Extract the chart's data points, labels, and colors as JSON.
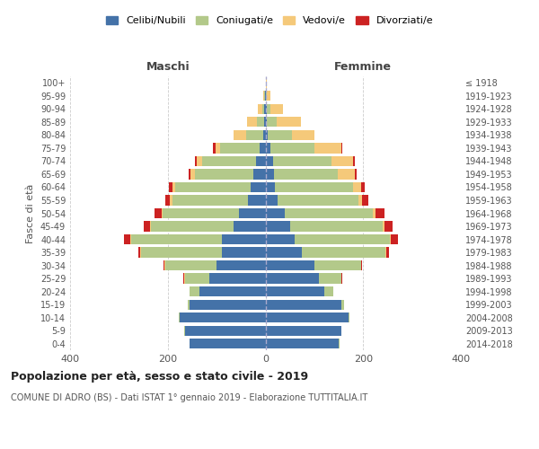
{
  "age_groups": [
    "0-4",
    "5-9",
    "10-14",
    "15-19",
    "20-24",
    "25-29",
    "30-34",
    "35-39",
    "40-44",
    "45-49",
    "50-54",
    "55-59",
    "60-64",
    "65-69",
    "70-74",
    "75-79",
    "80-84",
    "85-89",
    "90-94",
    "95-99",
    "100+"
  ],
  "birth_years": [
    "2014-2018",
    "2009-2013",
    "2004-2008",
    "1999-2003",
    "1994-1998",
    "1989-1993",
    "1984-1988",
    "1979-1983",
    "1974-1978",
    "1969-1973",
    "1964-1968",
    "1959-1963",
    "1954-1958",
    "1949-1953",
    "1944-1948",
    "1939-1943",
    "1934-1938",
    "1929-1933",
    "1924-1928",
    "1919-1923",
    "≤ 1918"
  ],
  "colors": {
    "celibi": "#4472a8",
    "coniugati": "#b3c98a",
    "vedovi": "#f5c97a",
    "divorziati": "#cc2222"
  },
  "maschi": {
    "celibi": [
      155,
      165,
      175,
      155,
      135,
      115,
      100,
      90,
      90,
      65,
      55,
      35,
      30,
      25,
      20,
      12,
      5,
      3,
      2,
      1,
      0
    ],
    "coniugati": [
      1,
      2,
      3,
      5,
      20,
      50,
      105,
      165,
      185,
      170,
      155,
      155,
      155,
      120,
      110,
      80,
      35,
      15,
      5,
      1,
      0
    ],
    "vedovi": [
      0,
      0,
      0,
      0,
      0,
      1,
      1,
      1,
      2,
      2,
      3,
      5,
      5,
      8,
      10,
      10,
      25,
      20,
      8,
      2,
      0
    ],
    "divorziati": [
      0,
      0,
      0,
      0,
      0,
      2,
      2,
      5,
      12,
      12,
      15,
      10,
      8,
      5,
      5,
      5,
      0,
      0,
      0,
      0,
      0
    ]
  },
  "femmine": {
    "celibi": [
      150,
      155,
      170,
      155,
      120,
      110,
      100,
      75,
      60,
      50,
      40,
      25,
      20,
      18,
      15,
      10,
      5,
      3,
      2,
      1,
      1
    ],
    "coniugati": [
      1,
      1,
      2,
      5,
      18,
      45,
      95,
      170,
      195,
      190,
      180,
      165,
      160,
      130,
      120,
      90,
      50,
      20,
      8,
      2,
      0
    ],
    "vedovi": [
      0,
      0,
      0,
      0,
      0,
      1,
      1,
      2,
      2,
      3,
      5,
      8,
      15,
      35,
      45,
      55,
      45,
      50,
      25,
      8,
      2
    ],
    "divorziati": [
      0,
      0,
      0,
      0,
      0,
      1,
      2,
      5,
      15,
      18,
      18,
      12,
      8,
      3,
      3,
      2,
      0,
      0,
      0,
      0,
      0
    ]
  },
  "xlim": 400,
  "title": "Popolazione per età, sesso e stato civile - 2019",
  "subtitle": "COMUNE DI ADRO (BS) - Dati ISTAT 1° gennaio 2019 - Elaborazione TUTTITALIA.IT",
  "ylabel_left": "Fasce di età",
  "xlabel_maschi": "Maschi",
  "xlabel_femmine": "Femmine",
  "background_color": "#ffffff",
  "grid_color": "#cccccc"
}
